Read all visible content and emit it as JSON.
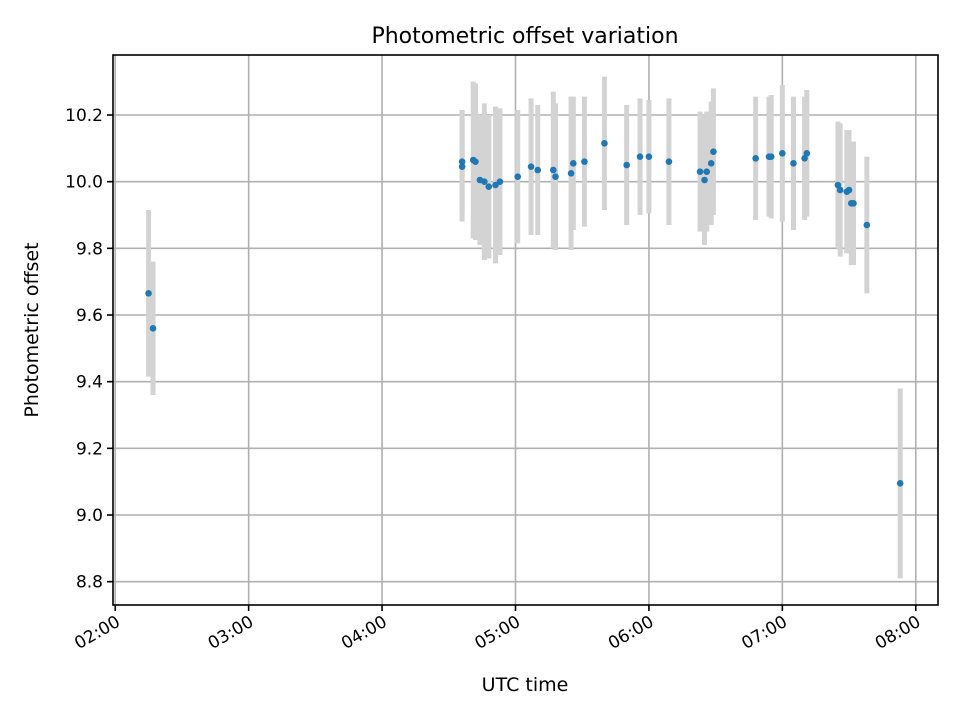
{
  "chart_data": {
    "type": "scatter",
    "title": "Photometric offset variation",
    "xlabel": "UTC time",
    "ylabel": "Photometric offset",
    "x_unit": "hours UTC",
    "xlim": [
      "01:59",
      "08:10"
    ],
    "ylim": [
      8.73,
      10.38
    ],
    "x_ticks": [
      "02:00",
      "03:00",
      "04:00",
      "05:00",
      "06:00",
      "07:00",
      "08:00"
    ],
    "y_ticks": [
      "8.8",
      "9.0",
      "9.2",
      "9.4",
      "9.6",
      "9.8",
      "10.0",
      "10.2"
    ],
    "grid": true,
    "errorbars": true,
    "point_color": "#1f77b4",
    "errorbar_color": "#d3d3d3",
    "series": [
      {
        "x": [
          "02:15",
          "02:17",
          "04:36",
          "04:36",
          "04:41",
          "04:42",
          "04:44",
          "04:46",
          "04:48",
          "04:51",
          "04:53",
          "05:01",
          "05:07",
          "05:10",
          "05:17",
          "05:18",
          "05:25",
          "05:26",
          "05:31",
          "05:40",
          "05:50",
          "05:56",
          "06:00",
          "06:09",
          "06:23",
          "06:25",
          "06:26",
          "06:28",
          "06:29",
          "06:48",
          "06:54",
          "06:55",
          "07:00",
          "07:05",
          "07:10",
          "07:11",
          "07:25",
          "07:26",
          "07:29",
          "07:30",
          "07:31",
          "07:32",
          "07:38",
          "07:53"
        ],
        "y": [
          9.665,
          9.56,
          10.045,
          10.06,
          10.065,
          10.06,
          10.005,
          10.0,
          9.985,
          9.99,
          10.0,
          10.015,
          10.045,
          10.035,
          10.035,
          10.015,
          10.025,
          10.055,
          10.06,
          10.115,
          10.05,
          10.075,
          10.075,
          10.06,
          10.03,
          10.005,
          10.03,
          10.055,
          10.09,
          10.07,
          10.075,
          10.075,
          10.085,
          10.055,
          10.07,
          10.085,
          9.99,
          9.975,
          9.97,
          9.975,
          9.935,
          9.935,
          9.87,
          9.095
        ],
        "yerr": [
          0.25,
          0.2,
          0.165,
          0.155,
          0.235,
          0.235,
          0.195,
          0.235,
          0.215,
          0.235,
          0.22,
          0.2,
          0.205,
          0.195,
          0.235,
          0.22,
          0.23,
          0.2,
          0.195,
          0.2,
          0.18,
          0.175,
          0.17,
          0.19,
          0.18,
          0.195,
          0.18,
          0.185,
          0.19,
          0.185,
          0.18,
          0.185,
          0.205,
          0.2,
          0.185,
          0.19,
          0.19,
          0.2,
          0.185,
          0.18,
          0.185,
          0.185,
          0.205,
          0.285
        ]
      }
    ]
  }
}
